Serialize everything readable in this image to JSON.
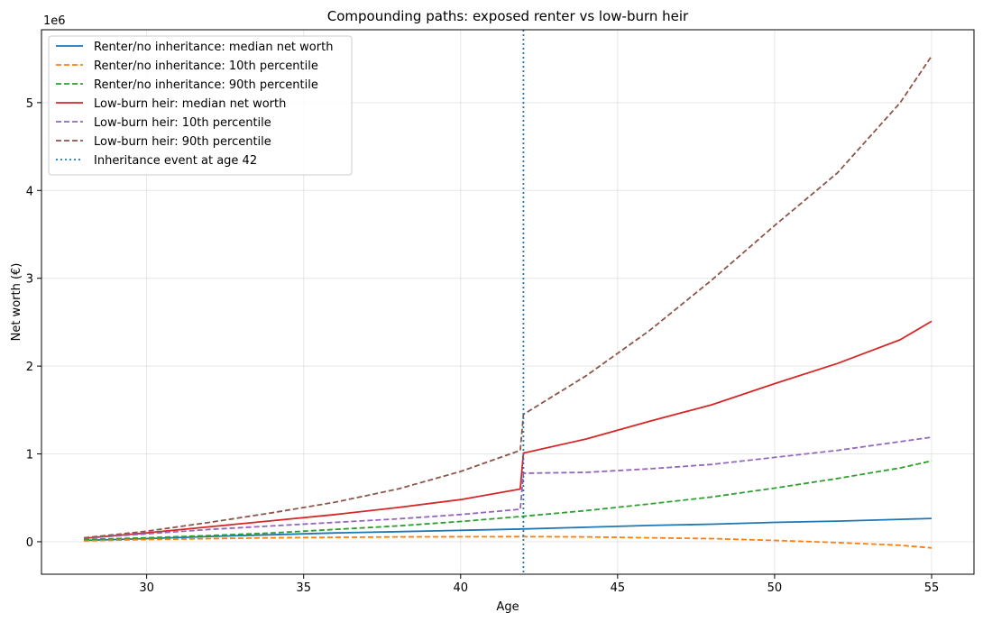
{
  "chart_data": {
    "type": "line",
    "title": "Compounding paths: exposed renter vs low-burn heir",
    "xlabel": "Age",
    "ylabel": "Net worth (€)",
    "y_offset_label": "1e6",
    "xlim": [
      26.65,
      56.35
    ],
    "ylim": [
      -0.37,
      5.83
    ],
    "xticks": [
      30,
      35,
      40,
      45,
      50,
      55
    ],
    "yticks": [
      0,
      1,
      2,
      3,
      4,
      5
    ],
    "grid": true,
    "legend_position": "upper-left",
    "vline": {
      "x": 42,
      "label": "Inheritance event at age 42",
      "color": "#1f77b4",
      "style": "dotted"
    },
    "series": [
      {
        "name": "Renter/no inheritance: median net worth",
        "color": "#1f77b4",
        "dash": "solid",
        "points": [
          [
            28,
            0.015
          ],
          [
            30,
            0.035
          ],
          [
            32,
            0.06
          ],
          [
            34,
            0.08
          ],
          [
            36,
            0.1
          ],
          [
            38,
            0.115
          ],
          [
            40,
            0.13
          ],
          [
            42,
            0.145
          ],
          [
            44,
            0.165
          ],
          [
            46,
            0.185
          ],
          [
            48,
            0.2
          ],
          [
            50,
            0.22
          ],
          [
            52,
            0.235
          ],
          [
            54,
            0.255
          ],
          [
            55,
            0.265
          ]
        ]
      },
      {
        "name": "Renter/no inheritance: 10th percentile",
        "color": "#ff7f0e",
        "dash": "dashed",
        "points": [
          [
            28,
            0.01
          ],
          [
            30,
            0.025
          ],
          [
            32,
            0.035
          ],
          [
            34,
            0.045
          ],
          [
            36,
            0.05
          ],
          [
            38,
            0.055
          ],
          [
            40,
            0.057
          ],
          [
            42,
            0.058
          ],
          [
            44,
            0.055
          ],
          [
            46,
            0.045
          ],
          [
            48,
            0.035
          ],
          [
            50,
            0.015
          ],
          [
            52,
            -0.01
          ],
          [
            54,
            -0.04
          ],
          [
            55,
            -0.07
          ]
        ]
      },
      {
        "name": "Renter/no inheritance: 90th percentile",
        "color": "#2ca02c",
        "dash": "dashed",
        "points": [
          [
            28,
            0.025
          ],
          [
            30,
            0.045
          ],
          [
            32,
            0.07
          ],
          [
            34,
            0.1
          ],
          [
            36,
            0.14
          ],
          [
            38,
            0.18
          ],
          [
            40,
            0.23
          ],
          [
            42,
            0.29
          ],
          [
            44,
            0.355
          ],
          [
            46,
            0.43
          ],
          [
            48,
            0.51
          ],
          [
            50,
            0.61
          ],
          [
            52,
            0.72
          ],
          [
            54,
            0.84
          ],
          [
            55,
            0.92
          ]
        ]
      },
      {
        "name": "Low-burn heir: median net worth",
        "color": "#d62728",
        "dash": "solid",
        "points": [
          [
            28,
            0.04
          ],
          [
            30,
            0.1
          ],
          [
            32,
            0.17
          ],
          [
            34,
            0.24
          ],
          [
            36,
            0.31
          ],
          [
            38,
            0.39
          ],
          [
            40,
            0.48
          ],
          [
            41.9,
            0.6
          ],
          [
            42,
            1.01
          ],
          [
            44,
            1.17
          ],
          [
            46,
            1.37
          ],
          [
            48,
            1.56
          ],
          [
            50,
            1.8
          ],
          [
            52,
            2.03
          ],
          [
            54,
            2.3
          ],
          [
            55,
            2.51
          ]
        ]
      },
      {
        "name": "Low-burn heir: 10th percentile",
        "color": "#9467bd",
        "dash": "dashed",
        "points": [
          [
            28,
            0.04
          ],
          [
            30,
            0.09
          ],
          [
            32,
            0.14
          ],
          [
            34,
            0.18
          ],
          [
            36,
            0.22
          ],
          [
            38,
            0.26
          ],
          [
            40,
            0.31
          ],
          [
            41.9,
            0.37
          ],
          [
            42,
            0.78
          ],
          [
            44,
            0.79
          ],
          [
            46,
            0.83
          ],
          [
            48,
            0.88
          ],
          [
            50,
            0.96
          ],
          [
            52,
            1.04
          ],
          [
            54,
            1.14
          ],
          [
            55,
            1.19
          ]
        ]
      },
      {
        "name": "Low-burn heir: 90th percentile",
        "color": "#8c564b",
        "dash": "dashed",
        "points": [
          [
            28,
            0.045
          ],
          [
            30,
            0.12
          ],
          [
            32,
            0.22
          ],
          [
            34,
            0.33
          ],
          [
            36,
            0.45
          ],
          [
            38,
            0.6
          ],
          [
            40,
            0.8
          ],
          [
            41.9,
            1.04
          ],
          [
            42,
            1.45
          ],
          [
            44,
            1.89
          ],
          [
            46,
            2.4
          ],
          [
            48,
            2.98
          ],
          [
            50,
            3.6
          ],
          [
            52,
            4.2
          ],
          [
            54,
            5.0
          ],
          [
            55,
            5.53
          ]
        ]
      }
    ]
  }
}
